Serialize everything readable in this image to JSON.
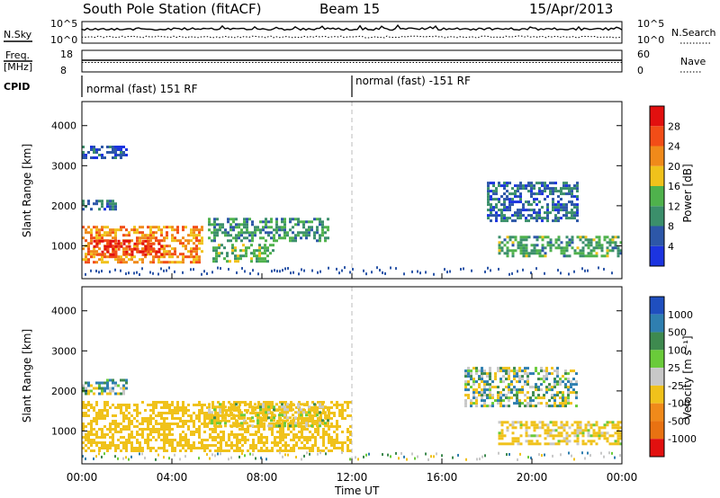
{
  "header": {
    "station": "South Pole Station (fitACF)",
    "beam": "Beam 15",
    "date": "15/Apr/2013"
  },
  "top_panels": {
    "nsky": {
      "label": "N.Sky",
      "tick_high": "10^5",
      "tick_low": "10^0",
      "right_label": "N.Search",
      "right_tick_high": "10^5",
      "right_tick_low": "10^0"
    },
    "freq": {
      "label_line1": "Freq.",
      "label_line2": "[MHz]",
      "tick_high": "18",
      "tick_low": "8",
      "right_label": "Nave",
      "right_tick_high": "60",
      "right_tick_low": "0"
    },
    "cpid": {
      "label": "CPID",
      "modes": [
        {
          "text": "normal (fast) 151 RF",
          "start_hour": 0
        },
        {
          "text": "normal (fast) -151 RF",
          "start_hour": 12
        }
      ]
    }
  },
  "x_axis": {
    "label": "Time UT",
    "ticks": [
      "00:00",
      "04:00",
      "08:00",
      "12:00",
      "16:00",
      "20:00",
      "00:00"
    ]
  },
  "y_axis": {
    "label": "Slant Range [km]",
    "ticks": [
      "1000",
      "2000",
      "3000",
      "4000"
    ]
  },
  "colorbars": {
    "power": {
      "label": "Power [dB]",
      "ticks": [
        "4",
        "8",
        "12",
        "16",
        "20",
        "24",
        "28"
      ],
      "colors": [
        "#1c34e0",
        "#2d57a8",
        "#3b8f6b",
        "#4fb24c",
        "#f0c21b",
        "#f08a1a",
        "#f24d17",
        "#e2100f"
      ]
    },
    "velocity": {
      "label": "Velocity [m s⁻¹]",
      "ticks": [
        "1000",
        "500",
        "100",
        "25",
        "-25",
        "-100",
        "-500",
        "-1000"
      ],
      "colors": [
        "#1f4fbf",
        "#2f7fb0",
        "#3e8a4f",
        "#6acb3a",
        "#c8c8c8",
        "#f0c21b",
        "#f08a1a",
        "#e87212",
        "#e2100f"
      ]
    }
  },
  "chart_data": [
    {
      "type": "heatmap",
      "ylabel": "Slant Range [km]",
      "xlabel": "Time UT",
      "xlim_hours": [
        0,
        24
      ],
      "ylim_km": [
        180,
        4600
      ],
      "colorbar_label": "Power [dB]",
      "colorbar_range": [
        0,
        32
      ],
      "echo_regions": [
        {
          "t0": 0.0,
          "t1": 5.4,
          "r0": 600,
          "r1": 1500,
          "value": 22
        },
        {
          "t0": 0.5,
          "t1": 3.6,
          "r0": 750,
          "r1": 1150,
          "value": 29
        },
        {
          "t0": 0.0,
          "t1": 1.5,
          "r0": 1900,
          "r1": 2150,
          "value": 8
        },
        {
          "t0": 0.0,
          "t1": 2.0,
          "r0": 3200,
          "r1": 3500,
          "value": 5
        },
        {
          "t0": 5.6,
          "t1": 11.0,
          "r0": 1100,
          "r1": 1700,
          "value": 10
        },
        {
          "t0": 5.8,
          "t1": 8.5,
          "r0": 600,
          "r1": 1050,
          "value": 13
        },
        {
          "t0": 18.0,
          "t1": 22.0,
          "r0": 1600,
          "r1": 2600,
          "value": 7
        },
        {
          "t0": 18.5,
          "t1": 24.0,
          "r0": 750,
          "r1": 1250,
          "value": 12
        }
      ]
    },
    {
      "type": "heatmap",
      "ylabel": "Slant Range [km]",
      "xlabel": "Time UT",
      "xlim_hours": [
        0,
        24
      ],
      "ylim_km": [
        180,
        4600
      ],
      "colorbar_label": "Velocity [m s⁻¹]",
      "colorbar_range": [
        -1000,
        1000
      ],
      "echo_regions": [
        {
          "t0": 0.0,
          "t1": 12.0,
          "r0": 500,
          "r1": 1750,
          "value": -300
        },
        {
          "t0": 0.0,
          "t1": 2.0,
          "r0": 1900,
          "r1": 2300,
          "value": 0
        },
        {
          "t0": 5.6,
          "t1": 11.0,
          "r0": 1100,
          "r1": 1700,
          "value": -150
        },
        {
          "t0": 17.0,
          "t1": 22.0,
          "r0": 1600,
          "r1": 2600,
          "value": 0
        },
        {
          "t0": 18.5,
          "t1": 24.0,
          "r0": 700,
          "r1": 1250,
          "value": -200
        }
      ]
    }
  ]
}
